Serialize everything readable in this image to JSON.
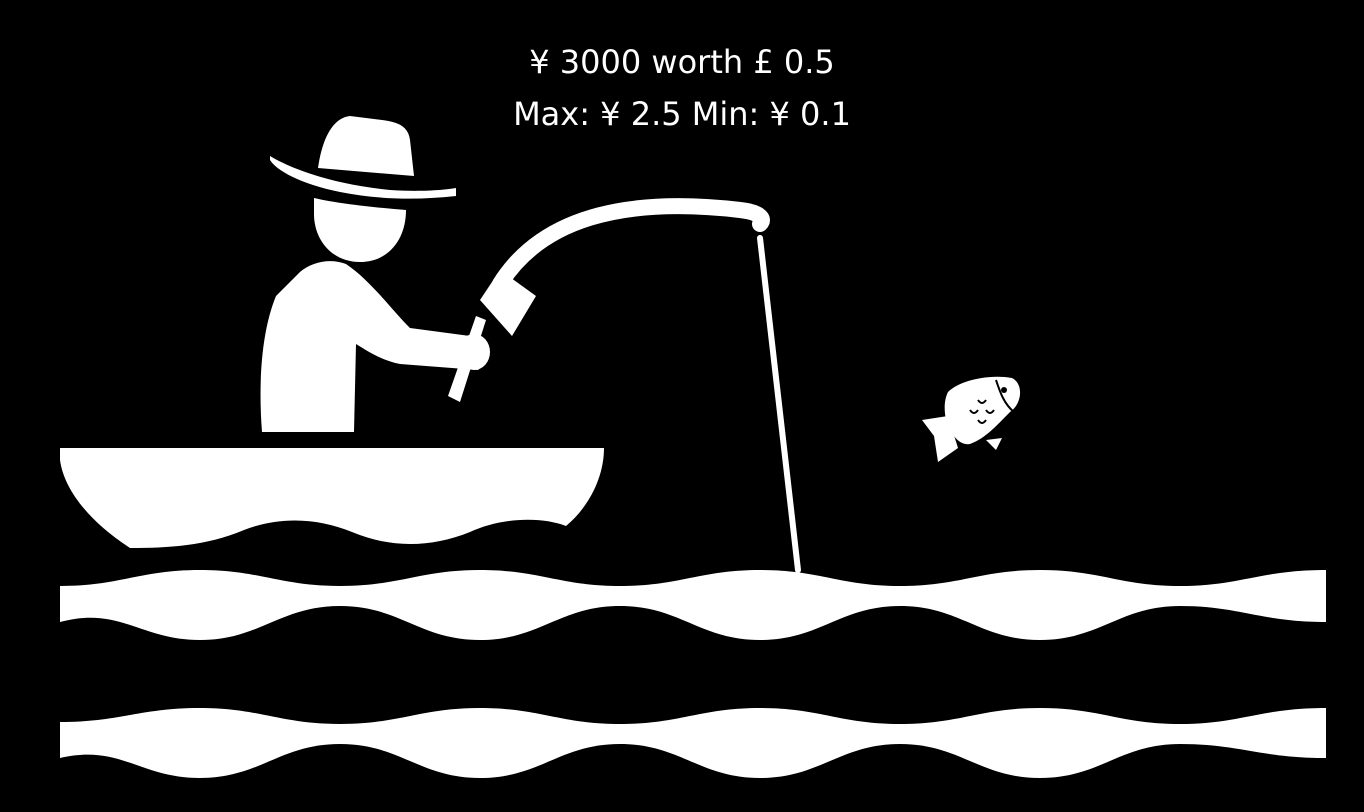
{
  "hud": {
    "rate_text": "¥ 3000 worth £ 0.5",
    "range_text": "Max: ¥ 2.5 Min: ¥ 0.1"
  },
  "scene": {
    "figures": [
      "fisherman-icon",
      "boat-icon",
      "fishing-rod-icon",
      "fishing-line-icon",
      "fish-icon",
      "wave-icon"
    ]
  },
  "colors": {
    "background": "#000000",
    "foreground": "#ffffff"
  }
}
